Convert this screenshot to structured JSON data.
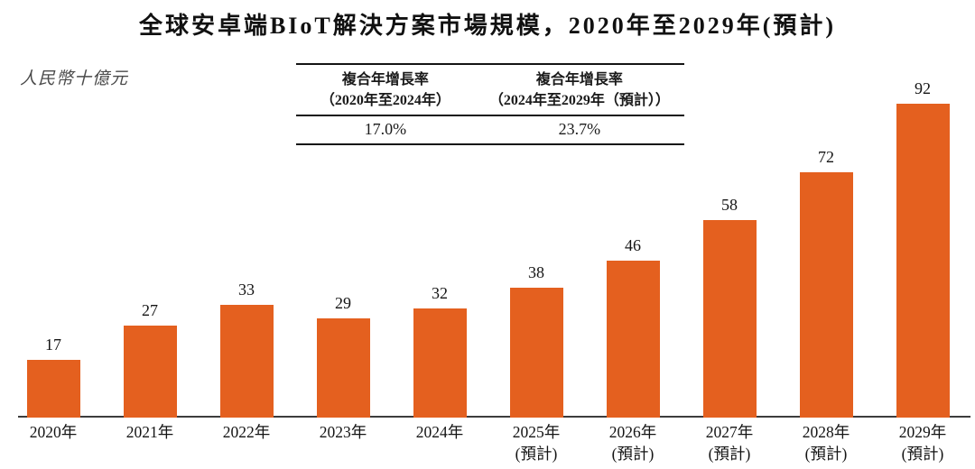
{
  "page": {
    "title": "全球安卓端BIoT解決方案市場規模，2020年至2029年(預計)",
    "unit_label": "人民幣十億元"
  },
  "cagr_table": {
    "columns": [
      {
        "header": "複合年增長率",
        "period": "（2020年至2024年）",
        "value": "17.0%"
      },
      {
        "header": "複合年增長率",
        "period": "（2024年至2029年（預計））",
        "value": "23.7%"
      }
    ]
  },
  "chart_data": {
    "type": "bar",
    "title": "全球安卓端BIoT解決方案市場規模，2020年至2029年(預計)",
    "ylabel": "人民幣十億元",
    "categories": [
      "2020年",
      "2021年",
      "2022年",
      "2023年",
      "2024年",
      "2025年",
      "2026年",
      "2027年",
      "2028年",
      "2029年"
    ],
    "category_notes": [
      "",
      "",
      "",
      "",
      "",
      "(預計)",
      "(預計)",
      "(預計)",
      "(預計)",
      "(預計)"
    ],
    "values": [
      17,
      27,
      33,
      29,
      32,
      38,
      46,
      58,
      72,
      92
    ],
    "value_labels_shown": true,
    "bar_color": "#E4601F",
    "ylim": [
      0,
      100
    ],
    "grid": false,
    "legend": "none",
    "annotations": [
      {
        "label": "複合年增長率（2020年至2024年）",
        "value": "17.0%"
      },
      {
        "label": "複合年增長率（2024年至2029年（預計））",
        "value": "23.7%"
      }
    ]
  }
}
